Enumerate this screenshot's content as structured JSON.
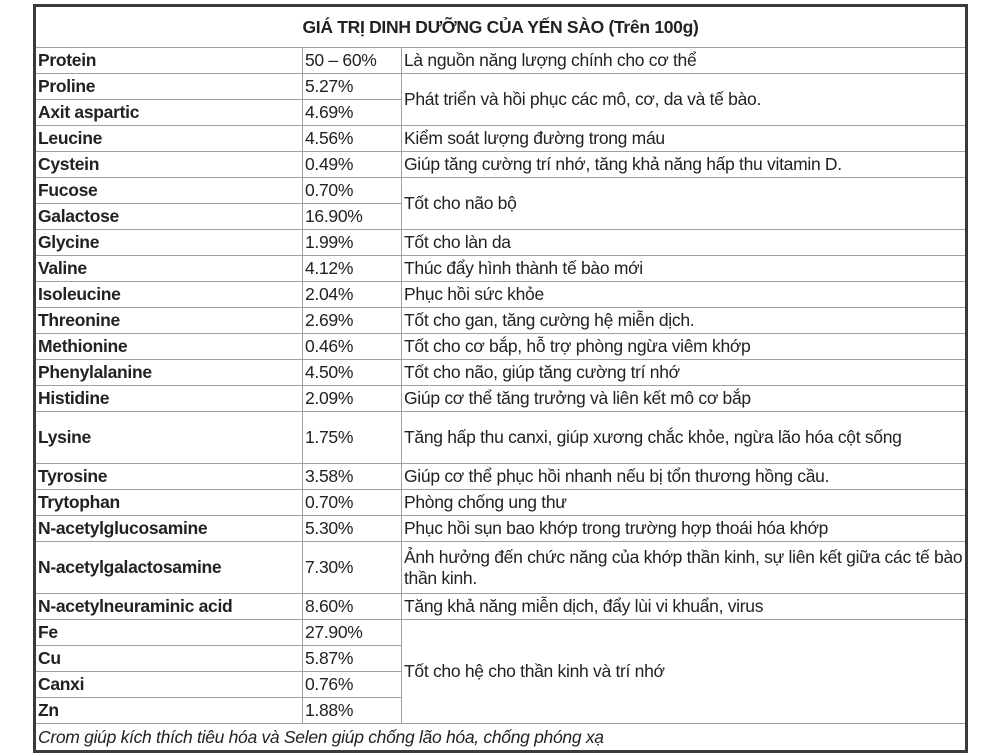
{
  "title": "GIÁ TRỊ DINH DƯỠNG CỦA YẾN SÀO (Trên 100g)",
  "rows": [
    {
      "name": "Protein",
      "value": "50 – 60%",
      "desc": "Là nguồn năng lượng chính cho cơ thể"
    },
    {
      "name": "Proline",
      "value": "5.27%",
      "desc": "Phát triển và hồi phục các mô, cơ, da và tế bào."
    },
    {
      "name": "Axit aspartic",
      "value": "4.69%"
    },
    {
      "name": "Leucine",
      "value": "4.56%",
      "desc": "Kiểm soát lượng đường trong máu"
    },
    {
      "name": "Cystein",
      "value": "0.49%",
      "desc": "Giúp tăng cường trí nhớ, tăng khả năng hấp thu vitamin D."
    },
    {
      "name": "Fucose",
      "value": "0.70%",
      "desc": "Tốt cho não bộ"
    },
    {
      "name": "Galactose",
      "value": "16.90%"
    },
    {
      "name": "Glycine",
      "value": "1.99%",
      "desc": "Tốt cho làn da"
    },
    {
      "name": "Valine",
      "value": "4.12%",
      "desc": "Thúc đẩy hình thành tế bào mới"
    },
    {
      "name": "Isoleucine",
      "value": "2.04%",
      "desc": "Phục hồi sức khỏe"
    },
    {
      "name": "Threonine",
      "value": "2.69%",
      "desc": "Tốt cho gan, tăng cường hệ miễn dịch."
    },
    {
      "name": "Methionine",
      "value": "0.46%",
      "desc": "Tốt cho cơ bắp, hỗ trợ phòng ngừa viêm khớp"
    },
    {
      "name": "Phenylalanine",
      "value": "4.50%",
      "desc": "Tốt cho não, giúp tăng cường trí nhớ"
    },
    {
      "name": "Histidine",
      "value": "2.09%",
      "desc": "Giúp cơ thể tăng trưởng và liên kết mô cơ bắp"
    },
    {
      "name": "Lysine",
      "value": "1.75%",
      "desc": "Tăng hấp thu canxi, giúp xương chắc khỏe, ngừa lão hóa cột sống"
    },
    {
      "name": "Tyrosine",
      "value": "3.58%",
      "desc": "Giúp cơ thể phục hồi nhanh nếu bị tổn thương hồng cầu."
    },
    {
      "name": "Trytophan",
      "value": "0.70%",
      "desc": "Phòng chống ung thư"
    },
    {
      "name": "N-acetylglucosamine",
      "value": "5.30%",
      "desc": "Phục hồi sụn bao khớp trong trường hợp thoái hóa khớp"
    },
    {
      "name": "N-acetylgalactosamine",
      "value": "7.30%",
      "desc": "Ảnh hưởng đến chức năng của khớp thần kinh, sự liên kết giữa các tế bào thần kinh."
    },
    {
      "name": "N-acetylneuraminic acid",
      "value": "8.60%",
      "desc": "Tăng khả năng miễn dịch, đẩy lùi vi khuẩn, virus"
    },
    {
      "name": "Fe",
      "value": "27.90%",
      "desc": "Tốt cho hệ cho thần kinh và trí nhớ"
    },
    {
      "name": "Cu",
      "value": "5.87%"
    },
    {
      "name": "Canxi",
      "value": "0.76%"
    },
    {
      "name": "Zn",
      "value": "1.88%"
    }
  ],
  "footer": "Crom giúp kích thích tiêu hóa và Selen giúp chống lão hóa, chống phóng xạ"
}
